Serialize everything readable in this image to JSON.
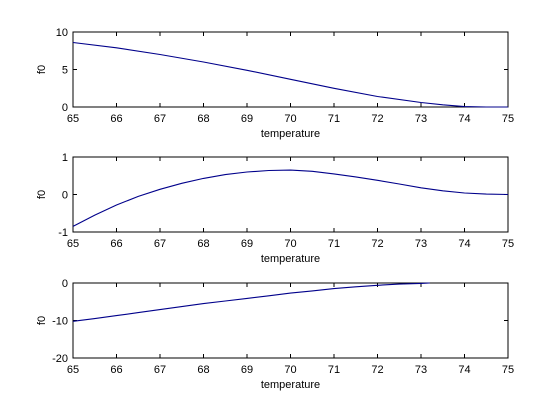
{
  "figure": {
    "background": "#ffffff",
    "axes_color": "#000000",
    "line_color": "#00008b"
  },
  "chart_data": [
    {
      "type": "line",
      "xlabel": "temperature",
      "ylabel": "f0",
      "xlim": [
        65,
        75
      ],
      "ylim": [
        0,
        10
      ],
      "xticks": [
        65,
        66,
        67,
        68,
        69,
        70,
        71,
        72,
        73,
        74,
        75
      ],
      "yticks": [
        0,
        5,
        10
      ],
      "grid": false,
      "series": [
        {
          "x": [
            65,
            66,
            67,
            68,
            69,
            70,
            71,
            72,
            73,
            73.5,
            74,
            74.5,
            75
          ],
          "values": [
            8.6,
            7.9,
            7.0,
            6.0,
            4.9,
            3.7,
            2.5,
            1.4,
            0.6,
            0.3,
            0.05,
            0,
            0
          ]
        }
      ]
    },
    {
      "type": "line",
      "xlabel": "temperature",
      "ylabel": "f0",
      "xlim": [
        65,
        75
      ],
      "ylim": [
        -1,
        1
      ],
      "xticks": [
        65,
        66,
        67,
        68,
        69,
        70,
        71,
        72,
        73,
        74,
        75
      ],
      "yticks": [
        -1,
        0,
        1
      ],
      "grid": false,
      "series": [
        {
          "x": [
            65,
            65.5,
            66,
            66.5,
            67,
            67.5,
            68,
            68.5,
            69,
            69.5,
            70,
            70.5,
            71,
            71.5,
            72,
            72.5,
            73,
            73.5,
            74,
            74.5,
            75
          ],
          "values": [
            -0.85,
            -0.55,
            -0.28,
            -0.05,
            0.14,
            0.3,
            0.43,
            0.53,
            0.6,
            0.64,
            0.65,
            0.62,
            0.55,
            0.47,
            0.38,
            0.28,
            0.18,
            0.1,
            0.04,
            0.01,
            0.0
          ]
        }
      ]
    },
    {
      "type": "line",
      "xlabel": "temperature",
      "ylabel": "f0",
      "xlim": [
        65,
        75
      ],
      "ylim": [
        -20,
        0
      ],
      "xticks": [
        65,
        66,
        67,
        68,
        69,
        70,
        71,
        72,
        73,
        74,
        75
      ],
      "yticks": [
        -20,
        -10,
        0
      ],
      "grid": false,
      "series": [
        {
          "x": [
            65,
            65.5,
            66,
            66.5,
            67,
            67.5,
            68,
            68.5,
            69,
            69.5,
            70,
            70.5,
            71,
            71.5,
            72,
            72.5,
            73,
            73.2
          ],
          "values": [
            -10.2,
            -9.5,
            -8.7,
            -7.9,
            -7.1,
            -6.3,
            -5.5,
            -4.8,
            -4.1,
            -3.4,
            -2.7,
            -2.1,
            -1.5,
            -1.0,
            -0.6,
            -0.3,
            -0.1,
            0
          ]
        }
      ]
    }
  ]
}
